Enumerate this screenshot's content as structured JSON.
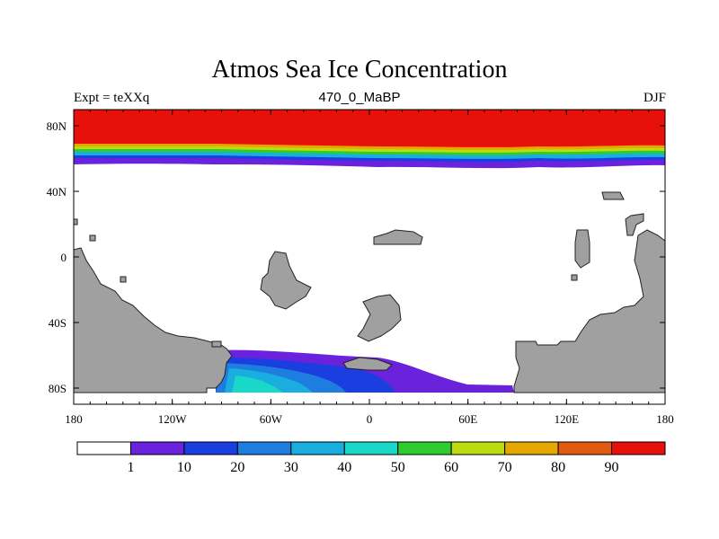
{
  "title": "Atmos Sea Ice Concentration",
  "experiment_label": "Expt = teXXq",
  "time_slice": "470_0_MaBP",
  "season": "DJF",
  "y_ticks": [
    "80N",
    "40N",
    "0",
    "40S",
    "80S"
  ],
  "x_ticks": [
    "180",
    "120W",
    "60W",
    "0",
    "60E",
    "120E",
    "180"
  ],
  "colorbar": {
    "labels": [
      "1",
      "10",
      "20",
      "30",
      "40",
      "50",
      "60",
      "70",
      "80",
      "90"
    ],
    "colors": [
      "#ffffff",
      "#6a22dd",
      "#1a3ee0",
      "#1e7ee0",
      "#1aaee0",
      "#19d8c8",
      "#2ecc2e",
      "#bcdc10",
      "#e4a800",
      "#e05a10",
      "#e8100a"
    ]
  },
  "land_color": "#a0a0a0"
}
